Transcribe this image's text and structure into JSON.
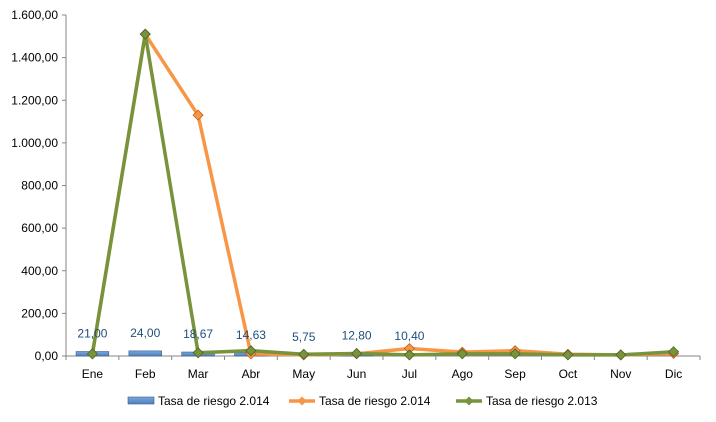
{
  "chart_data": {
    "type": "bar",
    "categories": [
      "Ene",
      "Feb",
      "Mar",
      "Abr",
      "May",
      "Jun",
      "Jul",
      "Ago",
      "Sep",
      "Oct",
      "Nov",
      "Dic"
    ],
    "ylim": [
      0,
      1600
    ],
    "y_ticks": [
      "0,00",
      "200,00",
      "400,00",
      "600,00",
      "800,00",
      "1.000,00",
      "1.200,00",
      "1.400,00",
      "1.600,00"
    ],
    "y_tick_values": [
      0,
      200,
      400,
      600,
      800,
      1000,
      1200,
      1400,
      1600
    ],
    "grid": false,
    "legend_position": "bottom",
    "series": [
      {
        "name": "Tasa de riesgo 2.014",
        "type": "bar",
        "color": "#4f81bd",
        "values": [
          21.0,
          24.0,
          18.67,
          14.63,
          5.75,
          12.8,
          10.4,
          null,
          null,
          null,
          null,
          null
        ],
        "labels": [
          "21,00",
          "24,00",
          "18,67",
          "14,63",
          "5,75",
          "12,80",
          "10,40",
          "",
          "",
          "",
          "",
          ""
        ]
      },
      {
        "name": "Tasa de riesgo 2.014",
        "type": "line",
        "color": "#f79646",
        "values": [
          10,
          1510,
          1130,
          10,
          5,
          10,
          35,
          18,
          25,
          8,
          5,
          12
        ]
      },
      {
        "name": "Tasa de riesgo 2.013",
        "type": "line",
        "color": "#77933c",
        "values": [
          10,
          1510,
          15,
          25,
          8,
          12,
          5,
          10,
          10,
          5,
          5,
          20
        ]
      }
    ]
  }
}
